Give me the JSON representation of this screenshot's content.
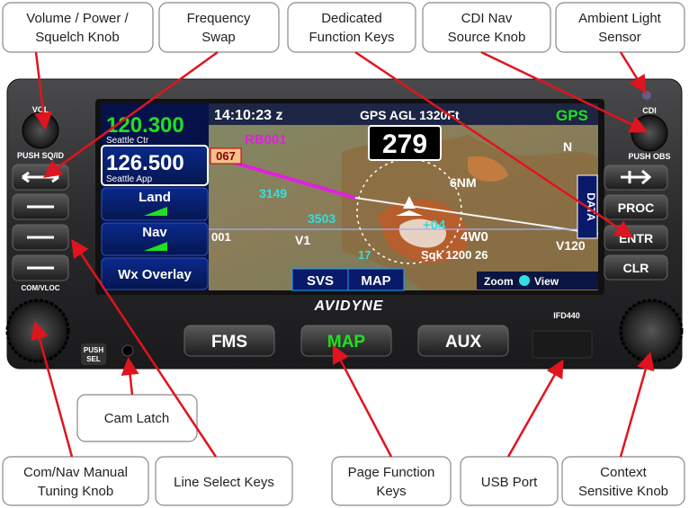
{
  "callouts_top": [
    {
      "lines": [
        "Volume / Power /",
        "Squelch Knob"
      ]
    },
    {
      "lines": [
        "Frequency",
        "Swap"
      ]
    },
    {
      "lines": [
        "Dedicated",
        "Function Keys"
      ]
    },
    {
      "lines": [
        "CDI Nav",
        "Source Knob"
      ]
    },
    {
      "lines": [
        "Ambient Light",
        "Sensor"
      ]
    }
  ],
  "callout_middle": {
    "lines": [
      "Cam Latch"
    ]
  },
  "callouts_bottom": [
    {
      "lines": [
        "Com/Nav Manual",
        "Tuning Knob"
      ]
    },
    {
      "lines": [
        "Line Select Keys"
      ]
    },
    {
      "lines": [
        "Page Function",
        "Keys"
      ]
    },
    {
      "lines": [
        "USB Port"
      ]
    },
    {
      "lines": [
        "Context",
        "Sensitive Knob"
      ]
    }
  ],
  "device": {
    "vol": "VOL",
    "push_sqid": "PUSH SQ/ID",
    "com_vloc": "COM/VLOC",
    "push_sel": [
      "PUSH",
      "SEL"
    ],
    "cdi": "CDI",
    "push_obs": "PUSH OBS",
    "right_keys": [
      "PROC",
      "ENTR",
      "CLR"
    ],
    "model": "IFD440",
    "brand": "AVIDYNE",
    "page_keys": [
      "FMS",
      "MAP",
      "AUX"
    ]
  },
  "screen": {
    "active_freq": "120.300",
    "active_name": "Seattle Ctr",
    "standby_freq": "126.500",
    "standby_name": "Seattle App",
    "line_keys": [
      "Land",
      "Nav",
      "Wx Overlay"
    ],
    "time": "14:10:23 z",
    "agl": "GPS AGL 1320Ft",
    "gps": "GPS",
    "waypoint": "RB001",
    "heading": "279",
    "course": "067",
    "labels": [
      "3149",
      "3503",
      "6NM",
      "N",
      "+04",
      "4W0",
      "Sqk 1200 26",
      "V120",
      "001",
      "V1",
      "17"
    ],
    "data_tab": "DATA",
    "tabs": [
      "SVS",
      "MAP"
    ],
    "zoom": "Zoom",
    "view": "View"
  }
}
